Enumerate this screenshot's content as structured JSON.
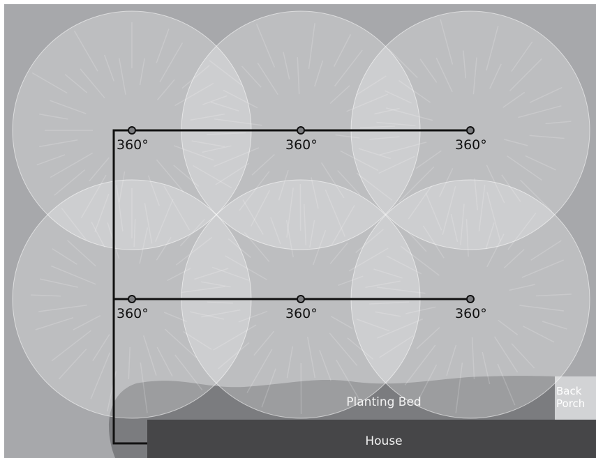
{
  "colors": {
    "lawn": "#a7a8ab",
    "spray": "#ffffff",
    "pipe": "#111111",
    "planting_bed": "#7b7c7f",
    "house": "#464648",
    "porch": "#d2d3d5"
  },
  "heads": [
    {
      "label": "360°"
    },
    {
      "label": "360°"
    },
    {
      "label": "360°"
    },
    {
      "label": "360°"
    },
    {
      "label": "360°"
    },
    {
      "label": "360°"
    }
  ],
  "areas": {
    "planting_bed": "Planting Bed",
    "house": "House",
    "porch_line1": "Back",
    "porch_line2": "Porch"
  }
}
